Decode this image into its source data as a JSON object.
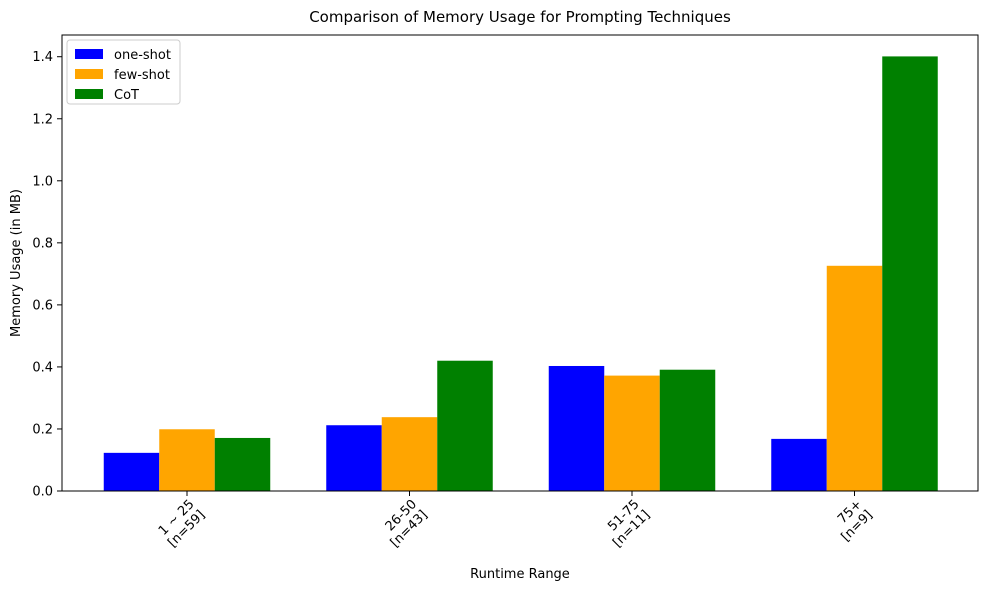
{
  "chart_data": {
    "type": "bar",
    "title": "Comparison of Memory Usage for Prompting Techniques",
    "xlabel": "Runtime Range",
    "ylabel": "Memory Usage (in MB)",
    "categories": [
      [
        "1 ~ 25",
        "[n=59]"
      ],
      [
        "26-50",
        "[n=43]"
      ],
      [
        "51-75",
        "[n=11]"
      ],
      [
        "75+",
        "[n=9]"
      ]
    ],
    "series": [
      {
        "name": "one-shot",
        "color": "#0000ff",
        "values": [
          0.123,
          0.212,
          0.403,
          0.168
        ]
      },
      {
        "name": "few-shot",
        "color": "#ffa500",
        "values": [
          0.199,
          0.238,
          0.372,
          0.726
        ]
      },
      {
        "name": "CoT",
        "color": "#008000",
        "values": [
          0.171,
          0.42,
          0.391,
          1.401
        ]
      }
    ],
    "ylim": [
      0,
      1.47
    ],
    "yticks": [
      0.0,
      0.2,
      0.4,
      0.6,
      0.8,
      1.0,
      1.2,
      1.4
    ],
    "legend": "top-left",
    "grid": false
  }
}
